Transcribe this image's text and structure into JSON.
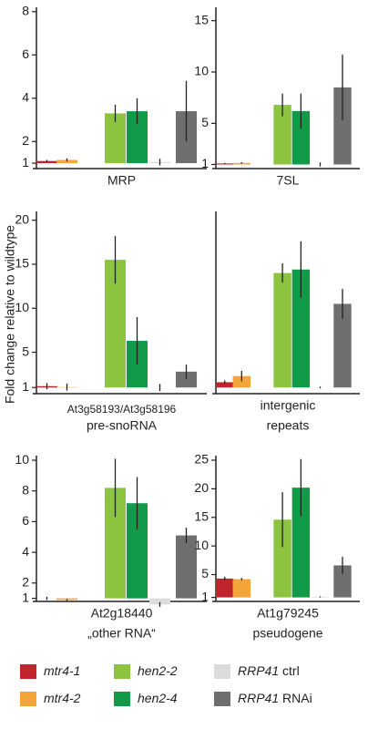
{
  "ylabel": "Fold change relative to wildtype",
  "legend": [
    {
      "name": "mtr4-1",
      "color": "#c0252d"
    },
    {
      "name": "mtr4-2",
      "color": "#f4a53a"
    },
    {
      "name": "hen2-2",
      "color": "#8dc43f"
    },
    {
      "name": "hen2-4",
      "color": "#119a48"
    },
    {
      "name": "RRP41",
      "suffix": "ctrl",
      "color": "#dcdcdc"
    },
    {
      "name": "RRP41",
      "suffix": "RNAi",
      "color": "#6f6f6f"
    }
  ],
  "chart_data": [
    {
      "type": "bar",
      "label": [
        "MRP"
      ],
      "baseline": 1,
      "ylim": [
        0.75,
        8.2
      ],
      "yticks": [
        1,
        2,
        4,
        6,
        8
      ],
      "values": [
        1.1,
        1.15,
        3.3,
        3.4,
        1.05,
        3.4
      ],
      "errors": [
        0.05,
        0.07,
        0.4,
        0.6,
        0.15,
        1.4
      ]
    },
    {
      "type": "bar",
      "label": [
        "7SL"
      ],
      "baseline": 1,
      "ylim": [
        0.6,
        16.3
      ],
      "yticks": [
        1,
        5,
        10,
        15
      ],
      "values": [
        1.1,
        1.15,
        6.8,
        6.2,
        1.0,
        8.5
      ],
      "errors": [
        0.05,
        0.07,
        1.1,
        1.7,
        0.2,
        3.2
      ]
    },
    {
      "type": "bar",
      "sublabel": "At3g58193/At3g58196",
      "label": [
        "pre-snoRNA"
      ],
      "baseline": 1,
      "ylim": [
        0.3,
        21
      ],
      "yticks": [
        1,
        5,
        10,
        15,
        20
      ],
      "values": [
        1.15,
        1.05,
        15.5,
        6.3,
        1.0,
        2.8
      ],
      "errors": [
        0.35,
        0.4,
        2.7,
        2.7,
        0.4,
        0.8
      ]
    },
    {
      "type": "bar",
      "label": [
        "intergenic",
        "repeats"
      ],
      "baseline": 1,
      "ylim": [
        0.3,
        21
      ],
      "yticks": [],
      "values": [
        1.6,
        2.3,
        14.0,
        14.4,
        1.0,
        10.5
      ],
      "errors": [
        0.2,
        0.6,
        1.1,
        3.2,
        0.1,
        1.7
      ]
    },
    {
      "type": "bar",
      "label": [
        "At2g18440",
        "„other RNA“"
      ],
      "baseline": 1,
      "ylim": [
        0.8,
        10.3
      ],
      "yticks": [
        1,
        2,
        4,
        6,
        8,
        10
      ],
      "values": [
        1.0,
        0.9,
        8.2,
        7.2,
        0.6,
        5.1
      ],
      "errors": [
        0.1,
        0.05,
        1.9,
        1.7,
        0.15,
        0.5
      ]
    },
    {
      "type": "bar",
      "label": [
        "At1g79245",
        "pseudogene"
      ],
      "baseline": 1,
      "ylim": [
        0.3,
        25.8
      ],
      "yticks": [
        1,
        5,
        10,
        15,
        20,
        25
      ],
      "values": [
        4.3,
        4.2,
        14.6,
        20.2,
        1.1,
        6.6
      ],
      "errors": [
        0.3,
        0.2,
        4.8,
        5.0,
        0.1,
        1.5
      ]
    }
  ]
}
